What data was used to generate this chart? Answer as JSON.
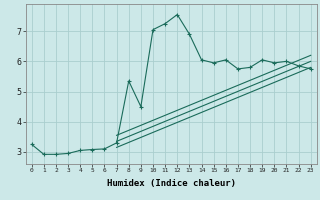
{
  "xlabel": "Humidex (Indice chaleur)",
  "ylabel": "",
  "bg_color": "#cce8e8",
  "grid_color": "#aacece",
  "line_color": "#1a6b5a",
  "xlim": [
    -0.5,
    23.5
  ],
  "ylim": [
    2.6,
    7.9
  ],
  "xticks": [
    0,
    1,
    2,
    3,
    4,
    5,
    6,
    7,
    8,
    9,
    10,
    11,
    12,
    13,
    14,
    15,
    16,
    17,
    18,
    19,
    20,
    21,
    22,
    23
  ],
  "yticks": [
    3,
    4,
    5,
    6,
    7
  ],
  "series1_x": [
    0,
    1,
    2,
    3,
    4,
    5,
    6,
    7,
    8,
    9,
    10,
    11,
    12,
    13,
    14,
    15,
    16,
    17,
    18,
    19,
    20,
    21,
    22,
    23
  ],
  "series1_y": [
    3.25,
    2.92,
    2.92,
    2.95,
    3.05,
    3.08,
    3.1,
    3.3,
    5.35,
    4.5,
    7.05,
    7.25,
    7.55,
    6.9,
    6.05,
    5.95,
    6.05,
    5.75,
    5.8,
    6.05,
    5.95,
    6.0,
    5.85,
    5.75
  ],
  "line2_x": [
    7,
    23
  ],
  "line2_y": [
    3.15,
    5.8
  ],
  "line3_x": [
    7,
    23
  ],
  "line3_y": [
    3.35,
    6.0
  ],
  "line4_x": [
    7,
    23
  ],
  "line4_y": [
    3.55,
    6.2
  ]
}
